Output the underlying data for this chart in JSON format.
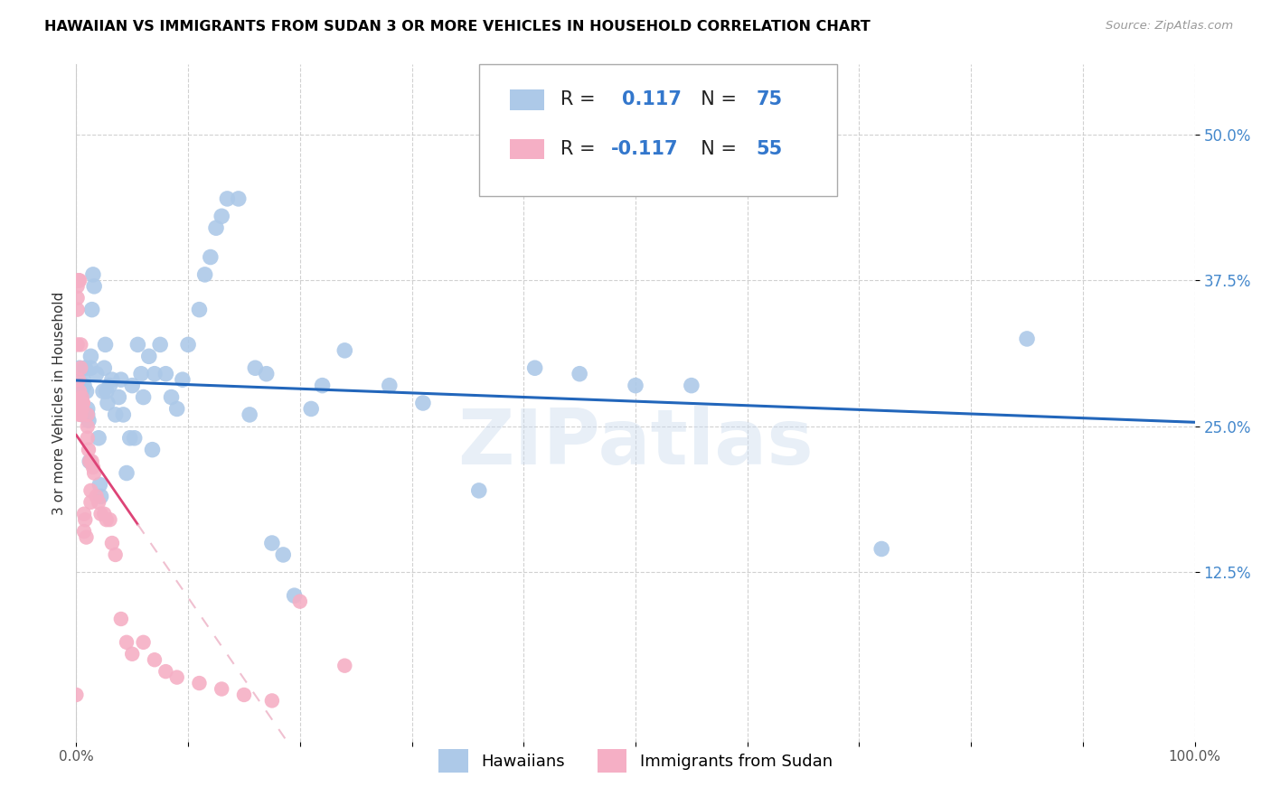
{
  "title": "HAWAIIAN VS IMMIGRANTS FROM SUDAN 3 OR MORE VEHICLES IN HOUSEHOLD CORRELATION CHART",
  "source": "Source: ZipAtlas.com",
  "ylabel": "3 or more Vehicles in Household",
  "ytick_labels": [
    "12.5%",
    "25.0%",
    "37.5%",
    "50.0%"
  ],
  "ytick_values": [
    0.125,
    0.25,
    0.375,
    0.5
  ],
  "xmin": 0.0,
  "xmax": 1.0,
  "ymin": -0.02,
  "ymax": 0.56,
  "watermark": "ZIPatlas",
  "blue_color": "#adc9e8",
  "pink_color": "#f5afc5",
  "blue_line_color": "#2266bb",
  "pink_line_color": "#dd4477",
  "pink_dash_color": "#f0c0d0",
  "hawaiians_x": [
    0.002,
    0.003,
    0.003,
    0.004,
    0.005,
    0.005,
    0.006,
    0.007,
    0.008,
    0.009,
    0.01,
    0.01,
    0.011,
    0.012,
    0.013,
    0.013,
    0.014,
    0.015,
    0.016,
    0.018,
    0.02,
    0.021,
    0.022,
    0.024,
    0.025,
    0.026,
    0.027,
    0.028,
    0.03,
    0.032,
    0.035,
    0.038,
    0.04,
    0.042,
    0.045,
    0.048,
    0.05,
    0.052,
    0.055,
    0.058,
    0.06,
    0.065,
    0.068,
    0.07,
    0.075,
    0.08,
    0.085,
    0.09,
    0.095,
    0.1,
    0.11,
    0.115,
    0.12,
    0.125,
    0.13,
    0.135,
    0.145,
    0.155,
    0.16,
    0.17,
    0.175,
    0.185,
    0.195,
    0.21,
    0.22,
    0.24,
    0.28,
    0.31,
    0.36,
    0.41,
    0.45,
    0.5,
    0.55,
    0.72,
    0.85
  ],
  "hawaiians_y": [
    0.275,
    0.3,
    0.27,
    0.265,
    0.28,
    0.27,
    0.29,
    0.285,
    0.3,
    0.28,
    0.26,
    0.265,
    0.255,
    0.22,
    0.3,
    0.31,
    0.35,
    0.38,
    0.37,
    0.295,
    0.24,
    0.2,
    0.19,
    0.28,
    0.3,
    0.32,
    0.28,
    0.27,
    0.285,
    0.29,
    0.26,
    0.275,
    0.29,
    0.26,
    0.21,
    0.24,
    0.285,
    0.24,
    0.32,
    0.295,
    0.275,
    0.31,
    0.23,
    0.295,
    0.32,
    0.295,
    0.275,
    0.265,
    0.29,
    0.32,
    0.35,
    0.38,
    0.395,
    0.42,
    0.43,
    0.445,
    0.445,
    0.26,
    0.3,
    0.295,
    0.15,
    0.14,
    0.105,
    0.265,
    0.285,
    0.315,
    0.285,
    0.27,
    0.195,
    0.3,
    0.295,
    0.285,
    0.285,
    0.145,
    0.325
  ],
  "sudan_x": [
    0.0,
    0.001,
    0.001,
    0.001,
    0.001,
    0.002,
    0.002,
    0.002,
    0.002,
    0.003,
    0.003,
    0.003,
    0.004,
    0.004,
    0.004,
    0.005,
    0.005,
    0.005,
    0.006,
    0.006,
    0.007,
    0.007,
    0.008,
    0.009,
    0.01,
    0.01,
    0.01,
    0.011,
    0.012,
    0.013,
    0.013,
    0.014,
    0.015,
    0.016,
    0.018,
    0.02,
    0.022,
    0.025,
    0.027,
    0.03,
    0.032,
    0.035,
    0.04,
    0.045,
    0.05,
    0.06,
    0.07,
    0.08,
    0.09,
    0.11,
    0.13,
    0.15,
    0.175,
    0.2,
    0.24
  ],
  "sudan_y": [
    0.02,
    0.37,
    0.36,
    0.35,
    0.32,
    0.375,
    0.375,
    0.29,
    0.27,
    0.375,
    0.28,
    0.26,
    0.32,
    0.3,
    0.26,
    0.275,
    0.27,
    0.265,
    0.27,
    0.27,
    0.175,
    0.16,
    0.17,
    0.155,
    0.26,
    0.25,
    0.24,
    0.23,
    0.22,
    0.195,
    0.185,
    0.22,
    0.215,
    0.21,
    0.19,
    0.185,
    0.175,
    0.175,
    0.17,
    0.17,
    0.15,
    0.14,
    0.085,
    0.065,
    0.055,
    0.065,
    0.05,
    0.04,
    0.035,
    0.03,
    0.025,
    0.02,
    0.015,
    0.1,
    0.045
  ]
}
